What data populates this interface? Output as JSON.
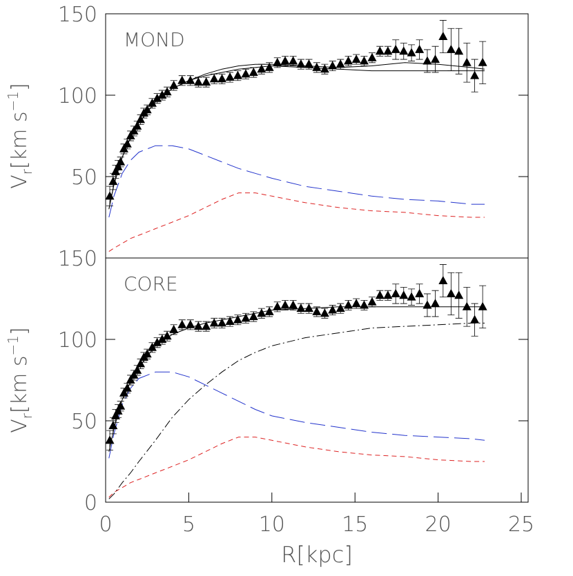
{
  "chart_data": [
    {
      "type": "line",
      "label": "MOND",
      "xlim": [
        0,
        25
      ],
      "ylim": [
        0,
        150
      ],
      "yticks": [
        50,
        100,
        150
      ],
      "ylabel": [
        "V",
        "r",
        "[km s",
        "−1",
        "]"
      ],
      "points": {
        "color": "#000",
        "x": [
          0.25,
          0.45,
          0.6,
          0.75,
          0.9,
          1.1,
          1.3,
          1.5,
          1.7,
          1.9,
          2.1,
          2.3,
          2.5,
          2.8,
          3.1,
          3.4,
          3.7,
          4.1,
          4.6,
          5.1,
          5.58,
          6.05,
          6.53,
          7.0,
          7.48,
          7.95,
          8.43,
          8.9,
          9.38,
          9.85,
          10.33,
          10.8,
          11.28,
          11.75,
          12.23,
          12.7,
          13.18,
          13.65,
          14.13,
          14.6,
          15.08,
          15.55,
          16.03,
          16.5,
          16.98,
          17.45,
          17.93,
          18.4,
          18.88,
          19.35,
          19.83,
          20.3,
          20.78,
          21.25,
          21.73,
          22.2,
          22.68
        ],
        "values": [
          38,
          47,
          53,
          56,
          59,
          67,
          70,
          75,
          78,
          81,
          85,
          89,
          91,
          95,
          98,
          100,
          102,
          106,
          109,
          109,
          108,
          108,
          110,
          110,
          111,
          112,
          113,
          114,
          116,
          117,
          120,
          121,
          121,
          119,
          119,
          117,
          116,
          118,
          119,
          121,
          122,
          121,
          123,
          127,
          127,
          128,
          127,
          126,
          128,
          121,
          122,
          136,
          128,
          127,
          120,
          112,
          120
        ],
        "errors": [
          6,
          5,
          4,
          4,
          3,
          3,
          3,
          3,
          3,
          3,
          3,
          3,
          3,
          3,
          3,
          3,
          3,
          3,
          3,
          3,
          3,
          3,
          3,
          3,
          3,
          3,
          3,
          3,
          3,
          3,
          3,
          3,
          3,
          3,
          3,
          3,
          3,
          3,
          3,
          3,
          3,
          3,
          3,
          3,
          3,
          6,
          5,
          5,
          6,
          7,
          8,
          10,
          13,
          14,
          12,
          10,
          13
        ]
      },
      "curve_x": [
        0.2,
        0.5,
        1,
        1.5,
        2,
        3,
        4,
        5,
        6,
        7,
        8,
        9,
        10,
        12,
        14,
        16,
        18,
        20,
        22,
        22.8
      ],
      "series": [
        {
          "color": "#000",
          "style": "solid",
          "values": [
            30,
            45,
            62,
            74,
            83,
            96,
            104,
            109,
            112,
            114,
            116,
            117,
            118,
            117,
            116,
            115,
            115,
            115,
            115,
            115
          ]
        },
        {
          "color": "#000",
          "style": "solid",
          "values": [
            30,
            45,
            62,
            74,
            83,
            96,
            104,
            109,
            113,
            116,
            118,
            119,
            119,
            118,
            117,
            118,
            120,
            119,
            117,
            116
          ]
        },
        {
          "color": "#2233cc",
          "style": "long-dash",
          "values": [
            25,
            38,
            52,
            60,
            65,
            69,
            69,
            67,
            63,
            59,
            55,
            52,
            49,
            44,
            41,
            38,
            36,
            35,
            33,
            33
          ]
        },
        {
          "color": "#dd2222",
          "style": "short-dash",
          "values": [
            4,
            6,
            9,
            12,
            14,
            18,
            22,
            26,
            31,
            36,
            40,
            40,
            38,
            34,
            31,
            29,
            28,
            26,
            25,
            25
          ]
        }
      ]
    },
    {
      "type": "line",
      "label": "CORE",
      "xlim": [
        0,
        25
      ],
      "ylim": [
        0,
        150
      ],
      "yticks": [
        0,
        50,
        100,
        150
      ],
      "xticks": [
        0,
        5,
        10,
        15,
        20,
        25
      ],
      "xlabel": "R[kpc]",
      "ylabel": [
        "V",
        "r",
        "[km s",
        "−1",
        "]"
      ],
      "points": {
        "color": "#000",
        "x": [
          0.25,
          0.45,
          0.6,
          0.75,
          0.9,
          1.1,
          1.3,
          1.5,
          1.7,
          1.9,
          2.1,
          2.3,
          2.5,
          2.8,
          3.1,
          3.4,
          3.7,
          4.1,
          4.6,
          5.1,
          5.58,
          6.05,
          6.53,
          7.0,
          7.48,
          7.95,
          8.43,
          8.9,
          9.38,
          9.85,
          10.33,
          10.8,
          11.28,
          11.75,
          12.23,
          12.7,
          13.18,
          13.65,
          14.13,
          14.6,
          15.08,
          15.55,
          16.03,
          16.5,
          16.98,
          17.45,
          17.93,
          18.4,
          18.88,
          19.35,
          19.83,
          20.3,
          20.78,
          21.25,
          21.73,
          22.2,
          22.68
        ],
        "values": [
          38,
          47,
          53,
          56,
          59,
          67,
          70,
          75,
          78,
          81,
          85,
          89,
          91,
          95,
          98,
          100,
          102,
          106,
          109,
          109,
          108,
          108,
          110,
          110,
          111,
          112,
          113,
          114,
          116,
          117,
          120,
          121,
          121,
          119,
          119,
          117,
          116,
          118,
          119,
          121,
          122,
          121,
          123,
          127,
          127,
          128,
          127,
          126,
          128,
          121,
          122,
          136,
          128,
          127,
          120,
          112,
          120
        ],
        "errors": [
          6,
          5,
          4,
          4,
          3,
          3,
          3,
          3,
          3,
          3,
          3,
          3,
          3,
          3,
          3,
          3,
          3,
          3,
          3,
          3,
          3,
          3,
          3,
          3,
          3,
          3,
          3,
          3,
          3,
          3,
          3,
          3,
          3,
          3,
          3,
          3,
          3,
          3,
          3,
          3,
          3,
          3,
          3,
          3,
          3,
          6,
          5,
          5,
          6,
          7,
          8,
          10,
          13,
          14,
          12,
          10,
          13
        ]
      },
      "curve_x": [
        0.2,
        0.5,
        1,
        1.5,
        2,
        3,
        4,
        5,
        6,
        7,
        8,
        9,
        10,
        12,
        14,
        16,
        18,
        20,
        22,
        22.8
      ],
      "series": [
        {
          "color": "#000",
          "style": "solid",
          "values": [
            31,
            45,
            63,
            74,
            83,
            96,
            103,
            107,
            110,
            112,
            114,
            116,
            118,
            119,
            120,
            120,
            120,
            120,
            120,
            120
          ]
        },
        {
          "color": "#2233cc",
          "style": "long-dash",
          "values": [
            27,
            42,
            60,
            70,
            76,
            80,
            80,
            77,
            72,
            67,
            62,
            57,
            53,
            49,
            46,
            43,
            41,
            40,
            39,
            38
          ]
        },
        {
          "color": "#dd2222",
          "style": "short-dash",
          "values": [
            3,
            6,
            9,
            12,
            14,
            18,
            22,
            26,
            31,
            36,
            40,
            40,
            38,
            34,
            31,
            29,
            28,
            26,
            25,
            25
          ]
        },
        {
          "color": "#000",
          "style": "dash-dot",
          "values": [
            2,
            5,
            12,
            18,
            25,
            38,
            52,
            63,
            72,
            80,
            87,
            92,
            96,
            101,
            104,
            107,
            108,
            109,
            110,
            110
          ]
        }
      ]
    }
  ]
}
